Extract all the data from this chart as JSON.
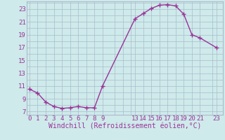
{
  "x": [
    0,
    1,
    2,
    3,
    4,
    5,
    6,
    7,
    8,
    9,
    13,
    14,
    15,
    16,
    17,
    18,
    19,
    20,
    21,
    23
  ],
  "y": [
    10.5,
    9.9,
    8.5,
    7.8,
    7.5,
    7.6,
    7.8,
    7.6,
    7.6,
    11.0,
    21.5,
    22.3,
    23.1,
    23.6,
    23.7,
    23.5,
    22.2,
    19.0,
    18.5,
    17.0
  ],
  "line_color": "#993399",
  "marker": "+",
  "marker_size": 4,
  "bg_color": "#ceeaea",
  "grid_color": "#aabbcc",
  "xlabel": "Windchill (Refroidissement éolien,°C)",
  "yticks": [
    7,
    9,
    11,
    13,
    15,
    17,
    19,
    21,
    23
  ],
  "xticks": [
    0,
    1,
    2,
    3,
    4,
    5,
    6,
    7,
    8,
    9,
    13,
    14,
    15,
    16,
    17,
    18,
    19,
    20,
    21,
    23
  ],
  "xlim": [
    -0.3,
    23.8
  ],
  "ylim": [
    6.5,
    24.2
  ],
  "xlabel_fontsize": 7,
  "tick_fontsize": 6.5,
  "line_width": 1.0
}
